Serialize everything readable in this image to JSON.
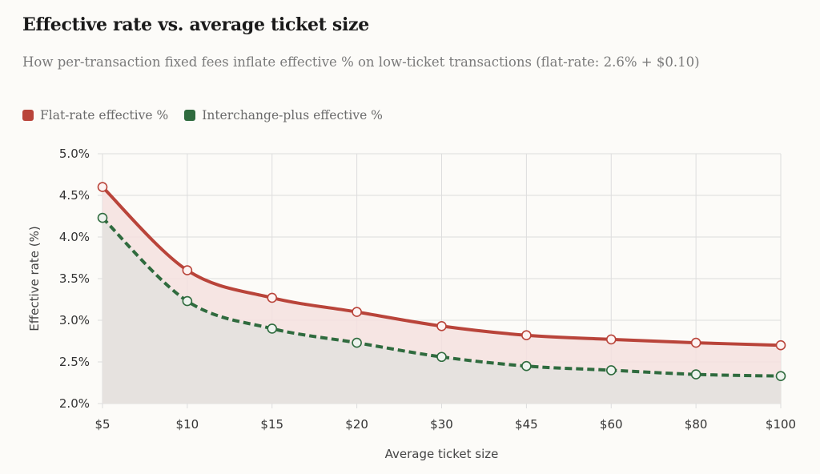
{
  "title": "Effective rate vs. average ticket size",
  "subtitle": "How per-transaction fixed fees inflate effective % on low-ticket transactions (flat-rate: 2.6% + $0.10)",
  "colors": {
    "flat": "#b9443a",
    "ic": "#2f6b3e",
    "flat_fill": "#f5e1df",
    "ic_fill": "#e6e2df",
    "grid": "#dddddd",
    "axis_text": "#333333"
  },
  "chart_data": {
    "type": "line",
    "categories": [
      "$5",
      "$10",
      "$15",
      "$20",
      "$30",
      "$45",
      "$60",
      "$80",
      "$100"
    ],
    "series": [
      {
        "name": "Flat-rate effective %",
        "values": [
          4.6,
          3.6,
          3.27,
          3.1,
          2.93,
          2.82,
          2.77,
          2.73,
          2.7
        ]
      },
      {
        "name": "Interchange-plus effective %",
        "values": [
          4.23,
          3.23,
          2.9,
          2.73,
          2.56,
          2.45,
          2.4,
          2.35,
          2.33
        ]
      }
    ],
    "xlabel": "Average ticket size",
    "ylabel": "Effective rate (%)",
    "ylim": [
      2.0,
      5.0
    ],
    "yticks": [
      "2.0%",
      "2.5%",
      "3.0%",
      "3.5%",
      "4.0%",
      "4.5%",
      "5.0%"
    ],
    "grid": true,
    "legend_position": "top-left"
  }
}
